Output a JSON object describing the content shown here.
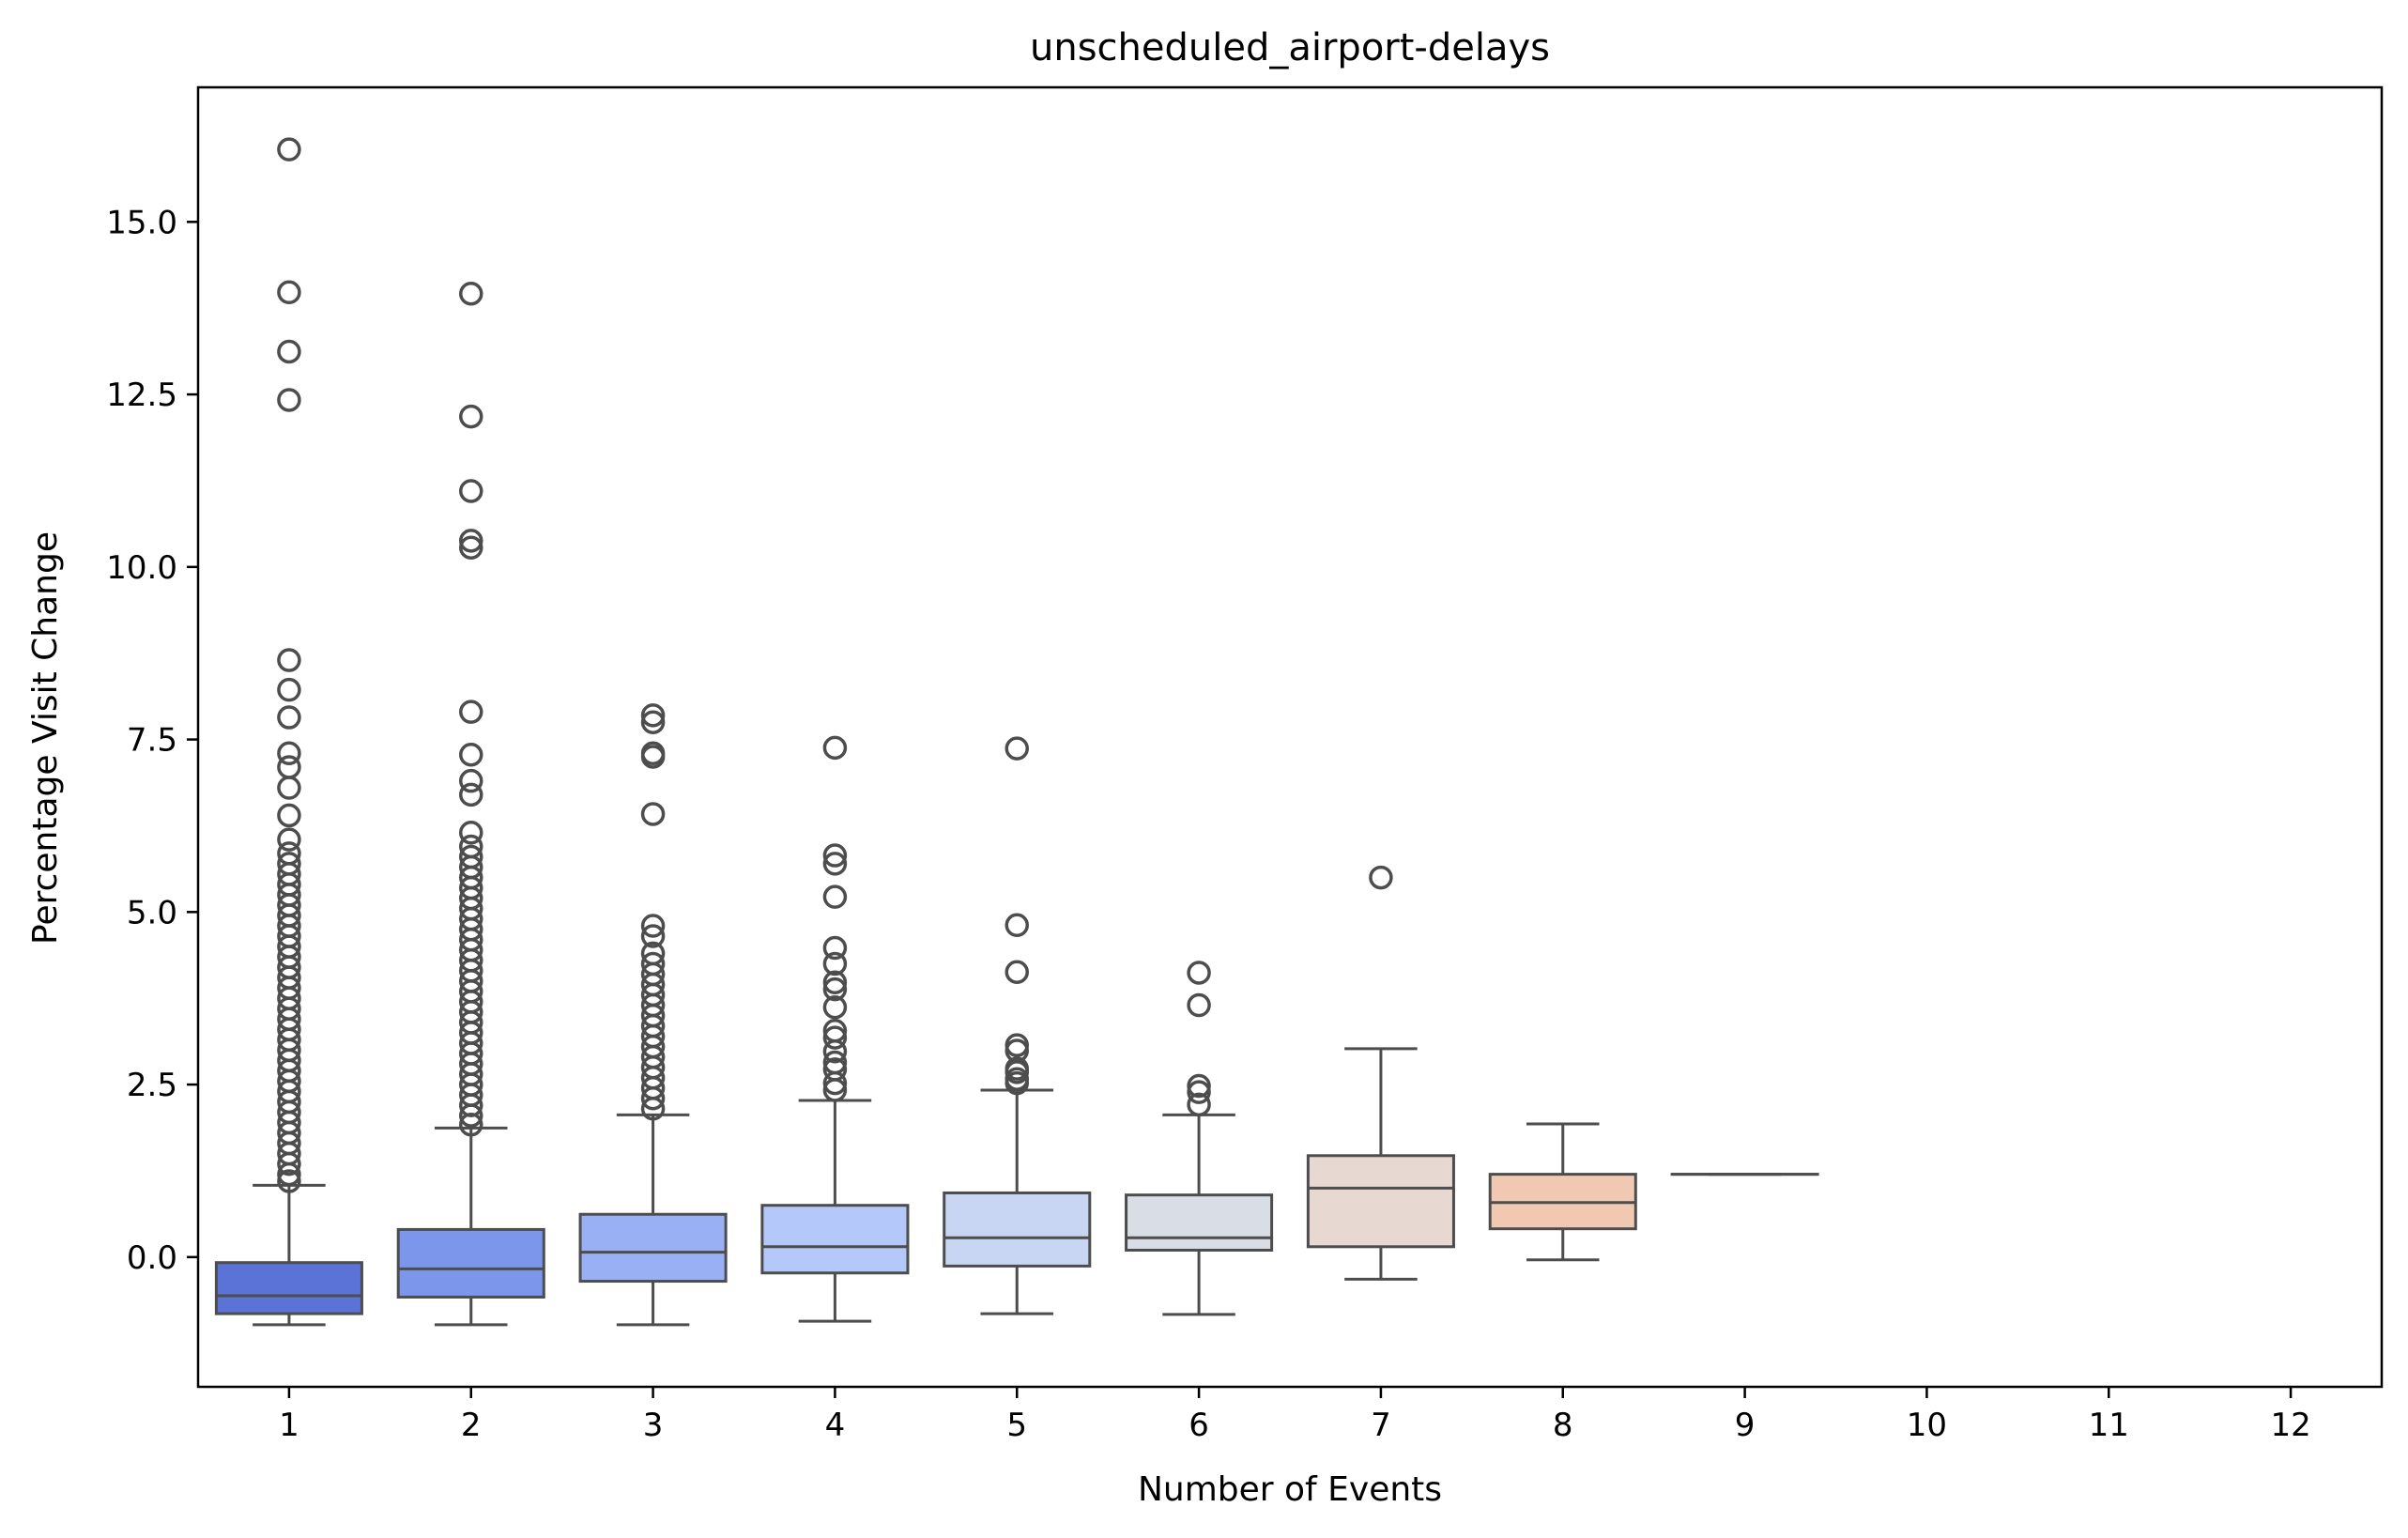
{
  "chart_data": {
    "type": "box",
    "title": "unscheduled_airport-delays",
    "xlabel": "Number of Events",
    "ylabel": "Percentage Visit Change",
    "categories": [
      "1",
      "2",
      "3",
      "4",
      "5",
      "6",
      "7",
      "8",
      "9",
      "10",
      "11",
      "12"
    ],
    "ylim": [
      -1.88,
      16.95
    ],
    "yticks": [
      0.0,
      2.5,
      5.0,
      7.5,
      10.0,
      12.5,
      15.0
    ],
    "ytick_labels": [
      "0.0",
      "2.5",
      "5.0",
      "7.5",
      "10.0",
      "12.5",
      "15.0"
    ],
    "grid": false,
    "legend": "none",
    "boxes": [
      {
        "category": "1",
        "whisker_low": -0.98,
        "q1": -0.82,
        "median": -0.56,
        "q3": -0.08,
        "whisker_high": 1.04,
        "color": "#5b72d6",
        "outliers": [
          16.05,
          13.98,
          13.12,
          12.42,
          8.65,
          8.22,
          7.82,
          7.3,
          7.1,
          6.8,
          6.4,
          6.05,
          5.85,
          5.7,
          5.55,
          5.4,
          5.25,
          5.1,
          4.95,
          4.8,
          4.65,
          4.5,
          4.35,
          4.2,
          4.05,
          3.9,
          3.75,
          3.6,
          3.45,
          3.3,
          3.15,
          3.0,
          2.85,
          2.7,
          2.55,
          2.4,
          2.25,
          2.1,
          1.95,
          1.8,
          1.65,
          1.5,
          1.35,
          1.2,
          1.1
        ]
      },
      {
        "category": "2",
        "whisker_low": -0.98,
        "q1": -0.58,
        "median": -0.17,
        "q3": 0.4,
        "whisker_high": 1.87,
        "color": "#7b96ea",
        "outliers": [
          13.96,
          12.18,
          11.1,
          10.38,
          10.28,
          7.9,
          7.28,
          6.9,
          6.7,
          6.15,
          5.95,
          5.8,
          5.65,
          5.5,
          5.35,
          5.2,
          5.05,
          4.9,
          4.75,
          4.6,
          4.45,
          4.3,
          4.15,
          4.0,
          3.85,
          3.7,
          3.55,
          3.4,
          3.25,
          3.1,
          2.95,
          2.8,
          2.65,
          2.5,
          2.35,
          2.2,
          2.05,
          1.92
        ]
      },
      {
        "category": "3",
        "whisker_low": -0.98,
        "q1": -0.35,
        "median": 0.07,
        "q3": 0.62,
        "whisker_high": 2.06,
        "color": "#9ab0f4",
        "outliers": [
          7.85,
          7.75,
          7.3,
          7.25,
          6.42,
          4.8,
          4.65,
          4.4,
          4.25,
          4.1,
          3.95,
          3.8,
          3.65,
          3.5,
          3.35,
          3.2,
          3.05,
          2.9,
          2.75,
          2.6,
          2.45,
          2.3,
          2.15
        ]
      },
      {
        "category": "4",
        "whisker_low": -0.93,
        "q1": -0.23,
        "median": 0.15,
        "q3": 0.75,
        "whisker_high": 2.27,
        "color": "#b5c8fa",
        "outliers": [
          7.38,
          5.82,
          5.7,
          5.22,
          4.48,
          4.25,
          3.98,
          3.88,
          3.62,
          3.28,
          3.18,
          2.98,
          2.82,
          2.72,
          2.52,
          2.42
        ]
      },
      {
        "category": "5",
        "whisker_low": -0.82,
        "q1": -0.13,
        "median": 0.28,
        "q3": 0.93,
        "whisker_high": 2.42,
        "color": "#c9d6f3",
        "outliers": [
          7.37,
          4.81,
          4.13,
          3.07,
          2.99,
          2.73,
          2.68,
          2.58,
          2.52
        ]
      },
      {
        "category": "6",
        "whisker_low": -0.83,
        "q1": 0.1,
        "median": 0.28,
        "q3": 0.9,
        "whisker_high": 2.06,
        "color": "#d9dde6",
        "outliers": [
          4.12,
          3.65,
          2.48,
          2.39,
          2.21
        ]
      },
      {
        "category": "7",
        "whisker_low": -0.32,
        "q1": 0.15,
        "median": 1.0,
        "q3": 1.47,
        "whisker_high": 3.02,
        "color": "#e7d8d1",
        "outliers": [
          5.5
        ]
      },
      {
        "category": "8",
        "whisker_low": -0.04,
        "q1": 0.41,
        "median": 0.79,
        "q3": 1.2,
        "whisker_high": 1.93,
        "color": "#f1c9b2",
        "outliers": []
      },
      {
        "category": "9",
        "whisker_low": 1.2,
        "q1": 1.2,
        "median": 1.2,
        "q3": 1.2,
        "whisker_high": 1.2,
        "color": "#f5c4ac",
        "outliers": []
      }
    ]
  }
}
